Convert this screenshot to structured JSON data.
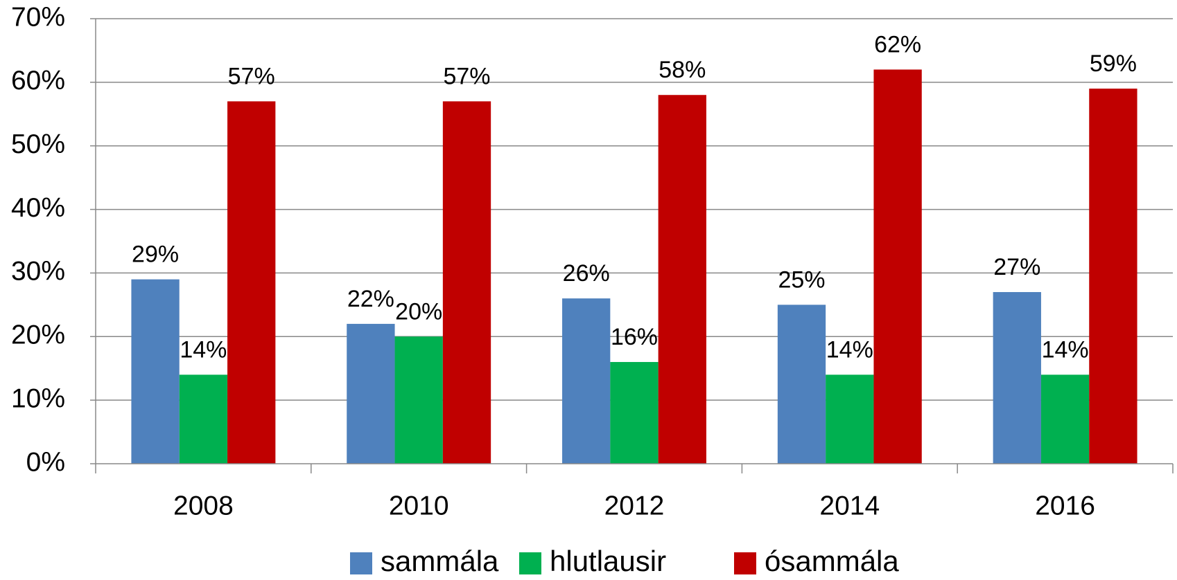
{
  "chart_data": {
    "type": "bar",
    "categories": [
      "2008",
      "2010",
      "2012",
      "2014",
      "2016"
    ],
    "series": [
      {
        "name": "sammála",
        "color": "#4f81bd",
        "values": [
          29,
          22,
          26,
          25,
          27
        ],
        "value_labels": [
          "29%",
          "22%",
          "26%",
          "25%",
          "27%"
        ]
      },
      {
        "name": "hlutlausir",
        "color": "#00b050",
        "values": [
          14,
          20,
          16,
          14,
          14
        ],
        "value_labels": [
          "14%",
          "20%",
          "16%",
          "14%",
          "14%"
        ]
      },
      {
        "name": "ósammála",
        "color": "#c00000",
        "values": [
          57,
          57,
          58,
          62,
          59
        ],
        "value_labels": [
          "57%",
          "57%",
          "58%",
          "62%",
          "59%"
        ]
      }
    ],
    "ylim": [
      0,
      70
    ],
    "yticks": [
      {
        "value": 0,
        "label": "0%"
      },
      {
        "value": 10,
        "label": "10%"
      },
      {
        "value": 20,
        "label": "20%"
      },
      {
        "value": 30,
        "label": "30%"
      },
      {
        "value": 40,
        "label": "40%"
      },
      {
        "value": 50,
        "label": "50%"
      },
      {
        "value": 60,
        "label": "60%"
      },
      {
        "value": 70,
        "label": "70%"
      }
    ],
    "grid": true,
    "legend": "bottom"
  }
}
